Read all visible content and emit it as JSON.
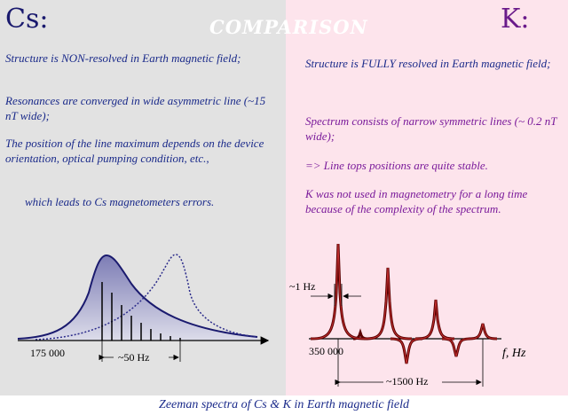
{
  "left": {
    "title": "Cs:",
    "p1": "Structure is NON-resolved in Earth magnetic field;",
    "p2": "Resonances are converged in wide asymmetric line (~15 nT wide);",
    "p3": "The position of the line maximum depends on the device orientation, optical pumping condition, etc.,",
    "p4": "which leads to Cs magnetometers errors.",
    "axis_start": "175 000",
    "width_label": "~50 Hz"
  },
  "center_title": "COMPARISON",
  "right": {
    "title": "K:",
    "p1": "Structure is FULLY resolved in Earth magnetic field;",
    "p2": "Spectrum consists of narrow symmetric lines (~ 0.2 nT wide);",
    "p3": "=> Line tops positions are quite stable.",
    "p4": "K was not used in magnetometry for a long time because of the complexity of the spectrum.",
    "axis_start": "350 000",
    "width_label": "~1 Hz",
    "span_label": "~1500 Hz",
    "axis_label": "f, Hz"
  },
  "caption": "Zeeman spectra of Cs & K in Earth magnetic field",
  "colors": {
    "left_bg": "#e2e2e2",
    "right_bg": "#fde4ec",
    "cs_curve": "#1a1a6e",
    "k_curve": "#8b0000"
  }
}
